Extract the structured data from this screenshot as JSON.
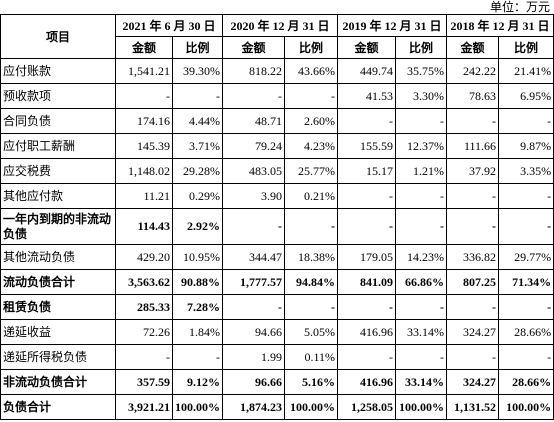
{
  "unit": "单位：万元",
  "table": {
    "header": {
      "item": "项目",
      "periods": [
        "2021 年 6 月 30 日",
        "2020 年 12 月 31 日",
        "2019 年 12 月 31 日",
        "2018 年 12 月 31 日"
      ],
      "subheaders": [
        "金额",
        "比例",
        "金额",
        "比例",
        "金额",
        "比例",
        "金额",
        "比例"
      ]
    },
    "rows": [
      [
        "应付账款",
        "1,541.21",
        "39.30%",
        "818.22",
        "43.66%",
        "449.74",
        "35.75%",
        "242.22",
        "21.41%"
      ],
      [
        "预收款项",
        "-",
        "-",
        "-",
        "-",
        "41.53",
        "3.30%",
        "78.63",
        "6.95%"
      ],
      [
        "合同负债",
        "174.16",
        "4.44%",
        "48.71",
        "2.60%",
        "-",
        "-",
        "-",
        "-"
      ],
      [
        "应付职工薪酬",
        "145.39",
        "3.71%",
        "79.24",
        "4.23%",
        "155.59",
        "12.37%",
        "111.66",
        "9.87%"
      ],
      [
        "应交税费",
        "1,148.02",
        "29.28%",
        "483.05",
        "25.77%",
        "15.17",
        "1.21%",
        "37.92",
        "3.35%"
      ],
      [
        "其他应付款",
        "11.21",
        "0.29%",
        "3.90",
        "0.21%",
        "-",
        "-",
        "-",
        "-"
      ],
      [
        "一年内到期的非流动负债",
        "114.43",
        "2.92%",
        "-",
        "-",
        "-",
        "-",
        "-",
        "-"
      ],
      [
        "其他流动负债",
        "429.20",
        "10.95%",
        "344.47",
        "18.38%",
        "179.05",
        "14.23%",
        "336.82",
        "29.77%"
      ],
      [
        "流动负债合计",
        "3,563.62",
        "90.88%",
        "1,777.57",
        "94.84%",
        "841.09",
        "66.86%",
        "807.25",
        "71.34%"
      ],
      [
        "租赁负债",
        "285.33",
        "7.28%",
        "-",
        "-",
        "-",
        "-",
        "-",
        "-"
      ],
      [
        "递延收益",
        "72.26",
        "1.84%",
        "94.66",
        "5.05%",
        "416.96",
        "33.14%",
        "324.27",
        "28.66%"
      ],
      [
        "递延所得税负债",
        "-",
        "-",
        "1.99",
        "0.11%",
        "-",
        "-",
        "-",
        "-"
      ],
      [
        "非流动负债合计",
        "357.59",
        "9.12%",
        "96.66",
        "5.16%",
        "416.96",
        "33.14%",
        "324.27",
        "28.66%"
      ],
      [
        "负债合计",
        "3,921.21",
        "100.00%",
        "1,874.23",
        "100.00%",
        "1,258.05",
        "100.00%",
        "1,131.52",
        "100.00%"
      ]
    ]
  }
}
